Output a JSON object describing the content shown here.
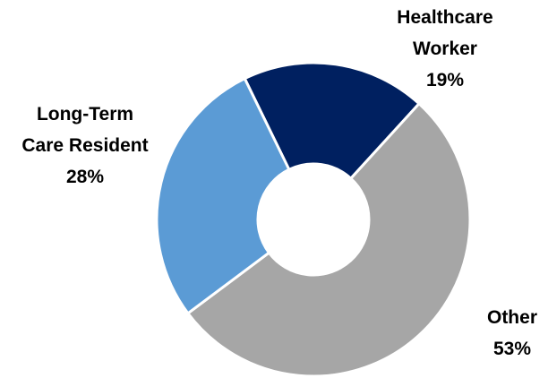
{
  "chart_data": {
    "type": "donut",
    "categories": [
      "Healthcare\nWorker",
      "Other",
      "Long-Term\nCare Resident"
    ],
    "values": [
      19,
      53,
      28
    ],
    "value_labels": [
      "19%",
      "53%",
      "28%"
    ],
    "colors": [
      "#002060",
      "#a6a6a6",
      "#5b9bd5"
    ]
  }
}
